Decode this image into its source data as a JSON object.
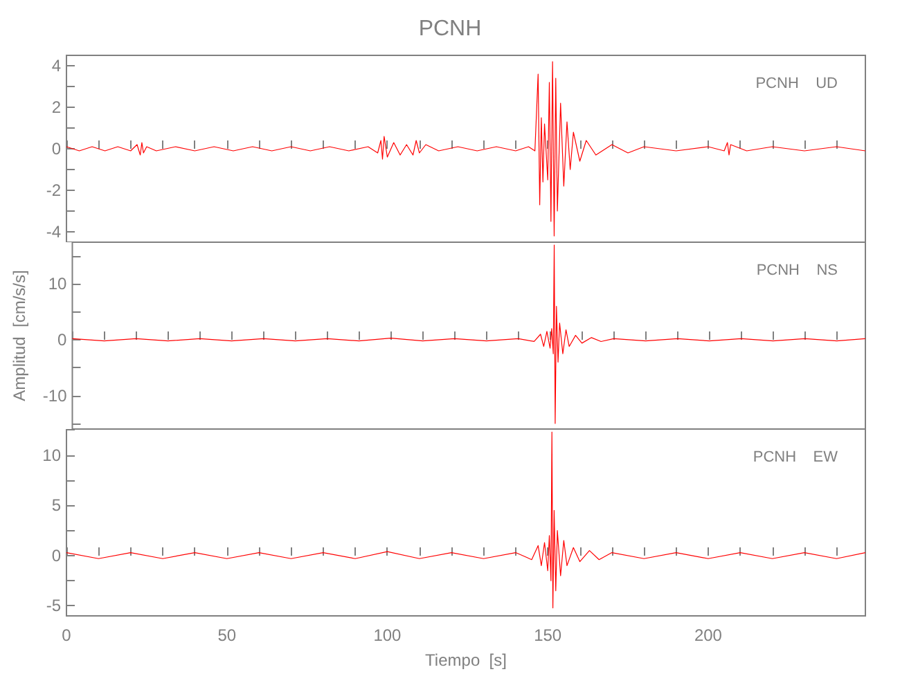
{
  "chart_data": [
    {
      "type": "line",
      "title": "PCNH",
      "annotations": [
        "PCNH    UD"
      ],
      "tick_labels": "y",
      "grid": false,
      "marker": "none",
      "line_style": "solid",
      "xlim": [
        0,
        249
      ],
      "xticks": [
        0,
        {
          "value": 10,
          "label": null
        },
        {
          "value": 20,
          "label": null
        },
        {
          "value": 30,
          "label": null
        },
        {
          "value": 40,
          "label": null
        },
        50,
        {
          "value": 60,
          "label": null
        },
        {
          "value": 70,
          "label": null
        },
        {
          "value": 80,
          "label": null
        },
        {
          "value": 90,
          "label": null
        },
        100,
        {
          "value": 110,
          "label": null
        },
        {
          "value": 120,
          "label": null
        },
        {
          "value": 130,
          "label": null
        },
        {
          "value": 140,
          "label": null
        },
        150,
        {
          "value": 160,
          "label": null
        },
        {
          "value": 170,
          "label": null
        },
        {
          "value": 180,
          "label": null
        },
        {
          "value": 190,
          "label": null
        },
        200,
        {
          "value": 210,
          "label": null
        },
        {
          "value": 220,
          "label": null
        },
        {
          "value": 230,
          "label": null
        },
        {
          "value": 240,
          "label": null
        }
      ],
      "ylim": [
        -4.5,
        4.5
      ],
      "yticks": [
        -4,
        {
          "value": -3,
          "label": null
        },
        -2,
        {
          "value": -1,
          "label": null
        },
        0,
        {
          "value": 1,
          "label": null
        },
        2,
        {
          "value": 3,
          "label": null
        },
        4
      ],
      "series": [
        {
          "color": "#ff0000",
          "x": [
            0,
            4,
            8,
            12,
            16,
            20,
            22,
            23,
            23.5,
            24,
            25,
            28,
            34,
            40,
            46,
            52,
            58,
            64,
            70,
            76,
            82,
            88,
            94,
            97,
            98,
            98.5,
            99,
            100,
            102,
            104,
            106,
            108,
            109,
            110,
            112,
            116,
            122,
            128,
            134,
            140,
            144,
            146,
            147,
            147.5,
            148,
            148.5,
            149,
            150,
            150.5,
            151,
            151.5,
            152,
            152.5,
            153,
            154,
            155,
            156,
            157,
            158,
            160,
            162,
            165,
            170,
            175,
            180,
            190,
            200,
            205,
            206,
            206.5,
            207,
            212,
            220,
            230,
            240,
            249
          ],
          "values": [
            0.1,
            -0.1,
            0.1,
            -0.1,
            0.1,
            -0.1,
            0.2,
            -0.3,
            0.3,
            -0.2,
            0.1,
            -0.1,
            0.1,
            -0.1,
            0.1,
            -0.1,
            0.1,
            -0.1,
            0.1,
            -0.1,
            0.1,
            -0.1,
            0.1,
            -0.2,
            0.4,
            -0.5,
            0.6,
            -0.4,
            0.3,
            -0.3,
            0.2,
            -0.3,
            0.4,
            -0.2,
            0.2,
            -0.1,
            0.1,
            -0.1,
            0.1,
            -0.1,
            0.1,
            -0.1,
            3.6,
            -2.7,
            1.5,
            -1.6,
            1.2,
            -1.5,
            3.2,
            -3.5,
            4.2,
            -4.2,
            3.4,
            -3.0,
            2.2,
            -1.8,
            1.3,
            -1.0,
            0.8,
            -0.6,
            0.4,
            -0.3,
            0.2,
            -0.2,
            0.1,
            -0.1,
            0.1,
            -0.1,
            0.3,
            -0.3,
            0.2,
            -0.1,
            0.1,
            -0.1,
            0.1,
            -0.1
          ]
        }
      ]
    },
    {
      "type": "line",
      "ylabel": "Amplitud  [cm/s/s]",
      "annotations": [
        "PCNH    NS"
      ],
      "tick_labels": "y",
      "grid": false,
      "marker": "none",
      "line_style": "solid",
      "xlim": [
        0,
        249
      ],
      "xticks": [
        0,
        {
          "value": 10,
          "label": null
        },
        {
          "value": 20,
          "label": null
        },
        {
          "value": 30,
          "label": null
        },
        {
          "value": 40,
          "label": null
        },
        50,
        {
          "value": 60,
          "label": null
        },
        {
          "value": 70,
          "label": null
        },
        {
          "value": 80,
          "label": null
        },
        {
          "value": 90,
          "label": null
        },
        100,
        {
          "value": 110,
          "label": null
        },
        {
          "value": 120,
          "label": null
        },
        {
          "value": 130,
          "label": null
        },
        {
          "value": 140,
          "label": null
        },
        150,
        {
          "value": 160,
          "label": null
        },
        {
          "value": 170,
          "label": null
        },
        {
          "value": 180,
          "label": null
        },
        {
          "value": 190,
          "label": null
        },
        200,
        {
          "value": 210,
          "label": null
        },
        {
          "value": 220,
          "label": null
        },
        {
          "value": 230,
          "label": null
        },
        {
          "value": 240,
          "label": null
        }
      ],
      "ylim": [
        -16,
        17.5
      ],
      "yticks": [
        {
          "value": -15,
          "label": null
        },
        -10,
        {
          "value": -5,
          "label": null
        },
        0,
        {
          "value": 5,
          "label": null
        },
        10,
        {
          "value": 15,
          "label": null
        }
      ],
      "series": [
        {
          "color": "#ff0000",
          "x": [
            0,
            10,
            20,
            30,
            40,
            50,
            60,
            70,
            80,
            90,
            100,
            110,
            120,
            130,
            140,
            145,
            147,
            148,
            149,
            150,
            150.5,
            151,
            151.3,
            151.6,
            152,
            152.5,
            153,
            154,
            155,
            156,
            158,
            160,
            163,
            166,
            170,
            180,
            190,
            200,
            210,
            220,
            230,
            240,
            249
          ],
          "values": [
            0.2,
            -0.2,
            0.2,
            -0.2,
            0.2,
            -0.2,
            0.2,
            -0.2,
            0.2,
            -0.2,
            0.3,
            -0.2,
            0.2,
            -0.2,
            0.2,
            -0.3,
            1,
            -1.2,
            1.5,
            -1.5,
            2,
            -2.5,
            17,
            -15,
            6,
            -4,
            3,
            -2.5,
            1.8,
            -1.2,
            0.8,
            -0.6,
            0.4,
            -0.3,
            0.2,
            -0.2,
            0.2,
            -0.2,
            0.2,
            -0.2,
            0.2,
            -0.2,
            0.2
          ]
        }
      ]
    },
    {
      "type": "line",
      "xlabel": "Tiempo  [s]",
      "annotations": [
        "PCNH    EW"
      ],
      "grid": false,
      "marker": "none",
      "line_style": "solid",
      "xlim": [
        0,
        249
      ],
      "xticks": [
        0,
        {
          "value": 10,
          "label": null
        },
        {
          "value": 20,
          "label": null
        },
        {
          "value": 30,
          "label": null
        },
        {
          "value": 40,
          "label": null
        },
        50,
        {
          "value": 60,
          "label": null
        },
        {
          "value": 70,
          "label": null
        },
        {
          "value": 80,
          "label": null
        },
        {
          "value": 90,
          "label": null
        },
        100,
        {
          "value": 110,
          "label": null
        },
        {
          "value": 120,
          "label": null
        },
        {
          "value": 130,
          "label": null
        },
        {
          "value": 140,
          "label": null
        },
        150,
        {
          "value": 160,
          "label": null
        },
        {
          "value": 170,
          "label": null
        },
        {
          "value": 180,
          "label": null
        },
        {
          "value": 190,
          "label": null
        },
        200,
        {
          "value": 210,
          "label": null
        },
        {
          "value": 220,
          "label": null
        },
        {
          "value": 230,
          "label": null
        },
        {
          "value": 240,
          "label": null
        }
      ],
      "ylim": [
        -6,
        12.6
      ],
      "yticks": [
        -5,
        {
          "value": -2.5,
          "label": null
        },
        0,
        {
          "value": 2.5,
          "label": null
        },
        5,
        {
          "value": 7.5,
          "label": null
        },
        10,
        {
          "value": 12.5,
          "label": null
        }
      ],
      "series": [
        {
          "color": "#ff0000",
          "x": [
            0,
            10,
            20,
            30,
            40,
            50,
            60,
            70,
            80,
            90,
            100,
            110,
            120,
            130,
            140,
            145,
            147,
            148,
            149,
            150,
            150.5,
            151,
            151.3,
            151.6,
            152,
            152.5,
            153,
            154,
            155,
            156,
            158,
            160,
            163,
            166,
            170,
            180,
            190,
            200,
            210,
            220,
            230,
            240,
            249
          ],
          "values": [
            0.3,
            -0.3,
            0.3,
            -0.3,
            0.3,
            -0.3,
            0.3,
            -0.3,
            0.3,
            -0.3,
            0.4,
            -0.3,
            0.3,
            -0.3,
            0.3,
            -0.4,
            1,
            -1,
            1.3,
            -1.5,
            2,
            -2.5,
            12.3,
            -5.2,
            4.5,
            -3.5,
            2.5,
            -2,
            1.5,
            -1,
            0.8,
            -0.6,
            0.5,
            -0.4,
            0.3,
            -0.3,
            0.3,
            -0.3,
            0.3,
            -0.3,
            0.3,
            -0.3,
            0.3
          ]
        }
      ]
    }
  ]
}
